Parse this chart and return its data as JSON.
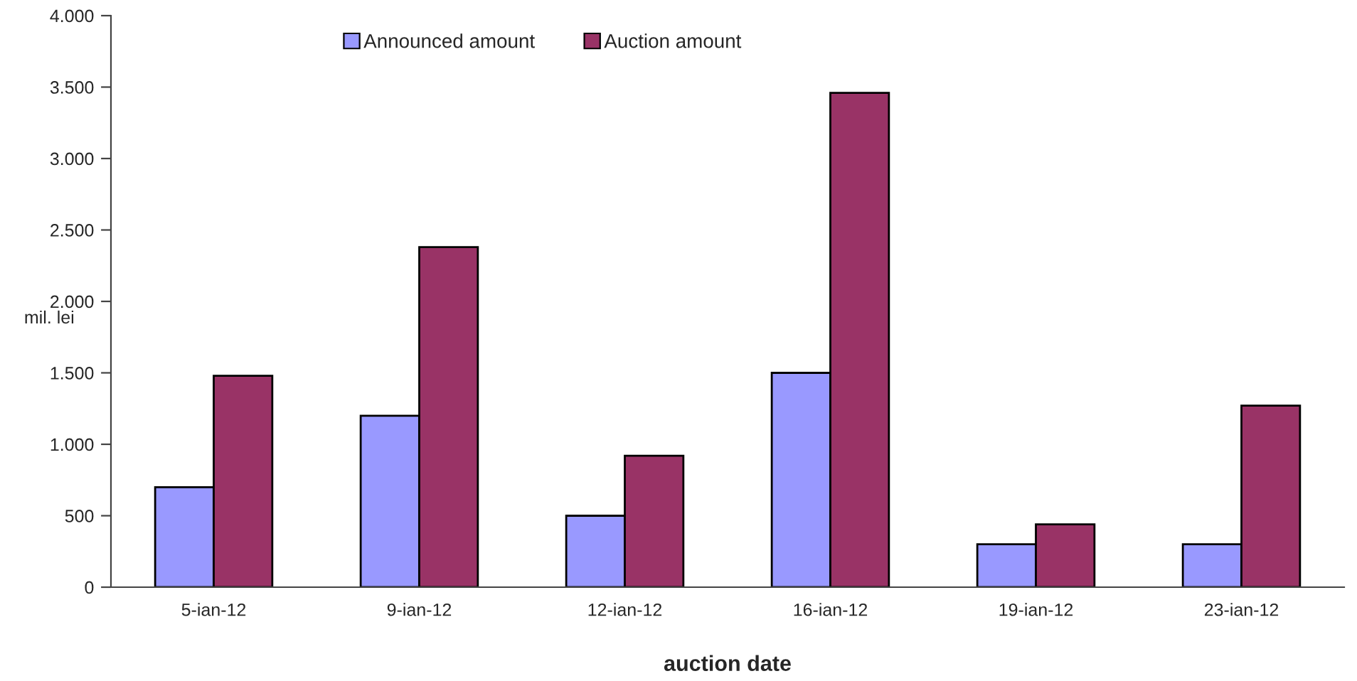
{
  "chart_data": {
    "type": "bar",
    "xlabel": "auction date",
    "ylabel": "mil. lei",
    "categories": [
      "5-ian-12",
      "9-ian-12",
      "12-ian-12",
      "16-ian-12",
      "19-ian-12",
      "23-ian-12"
    ],
    "series": [
      {
        "name": "Announced amount",
        "color": "#9999ff",
        "values": [
          700,
          1200,
          500,
          1500,
          300,
          300
        ]
      },
      {
        "name": "Auction amount",
        "color": "#993366",
        "values": [
          1480,
          2380,
          920,
          3460,
          440,
          1270
        ]
      }
    ],
    "ylim": [
      0,
      4000
    ],
    "yticks": [
      0,
      500,
      {
        "value": 1000,
        "label": "1.000"
      },
      {
        "value": 1500,
        "label": "1.500"
      },
      {
        "value": 2000,
        "label": "2.000"
      },
      {
        "value": 2500,
        "label": "2.500"
      },
      {
        "value": 3000,
        "label": "3.000"
      },
      {
        "value": 3500,
        "label": "3.500"
      },
      {
        "value": 4000,
        "label": "4.000"
      }
    ],
    "grid": false,
    "legend": "top"
  }
}
